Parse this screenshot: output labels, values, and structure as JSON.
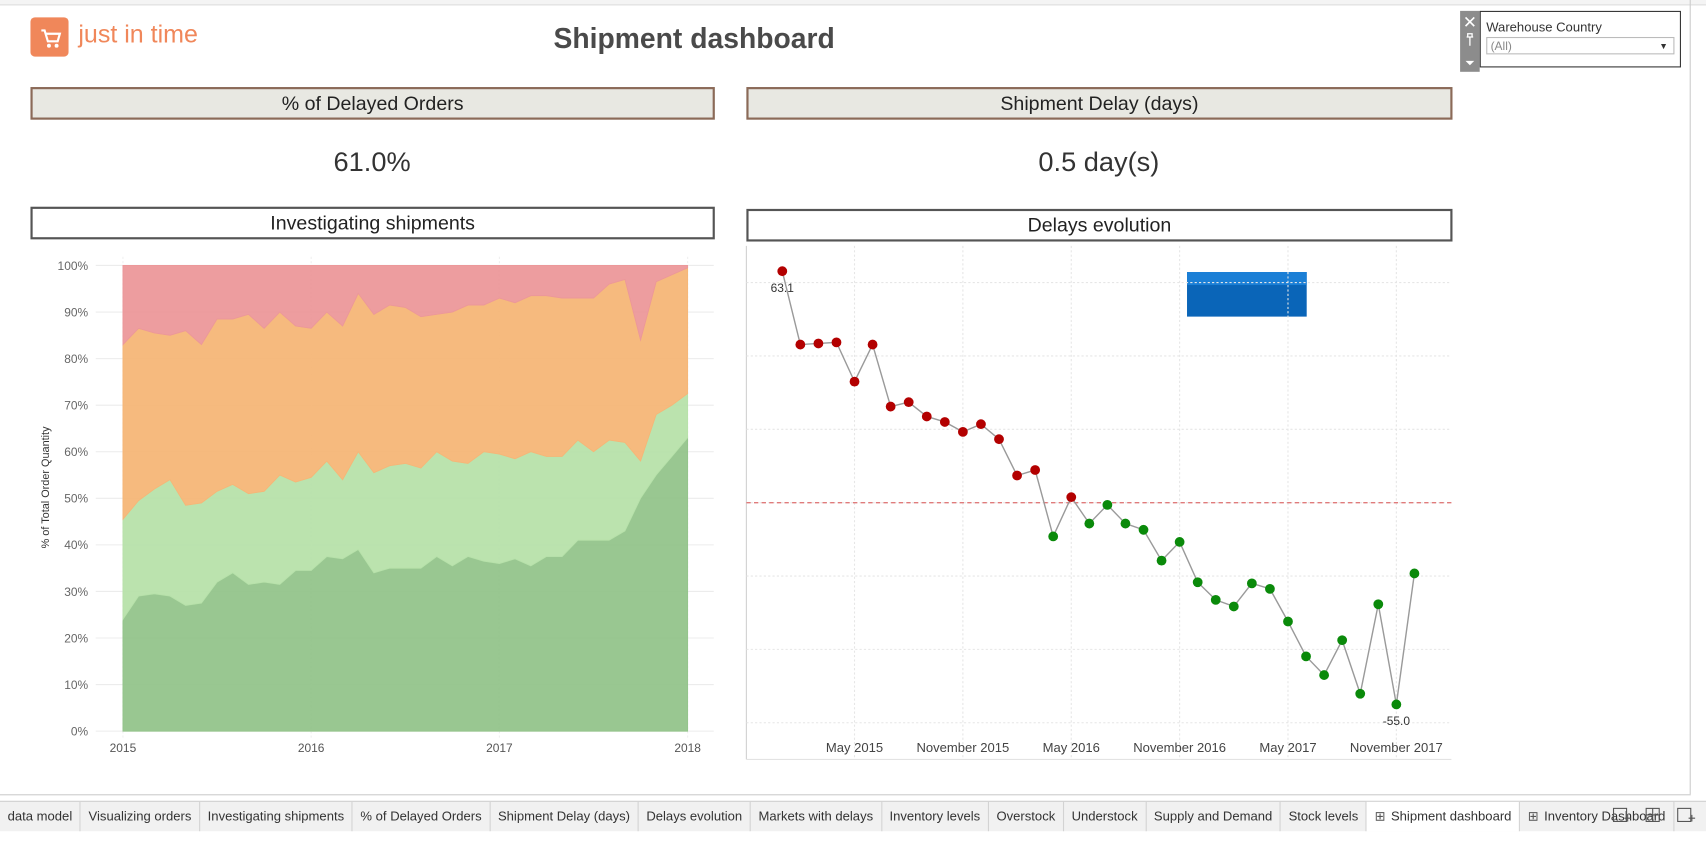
{
  "header": {
    "logo_text": "just in time",
    "title": "Shipment dashboard"
  },
  "kpis": [
    {
      "title": "% of Delayed Orders",
      "value": "61.0%"
    },
    {
      "title": "Shipment Delay (days)",
      "value": "0.5 day(s)"
    }
  ],
  "filter": {
    "label": "Warehouse Country",
    "value": "(All)"
  },
  "tabs": [
    {
      "label": "data model"
    },
    {
      "label": "Visualizing orders"
    },
    {
      "label": "Investigating shipments"
    },
    {
      "label": "% of Delayed Orders"
    },
    {
      "label": "Shipment Delay (days)"
    },
    {
      "label": "Delays evolution"
    },
    {
      "label": "Markets with delays"
    },
    {
      "label": "Inventory levels"
    },
    {
      "label": "Overstock"
    },
    {
      "label": "Understock"
    },
    {
      "label": "Supply and Demand"
    },
    {
      "label": "Stock levels"
    },
    {
      "label": "Shipment dashboard",
      "dashboard": true,
      "active": true
    },
    {
      "label": "Inventory Dashboard",
      "dashboard": true
    }
  ],
  "chart_data": [
    {
      "type": "area",
      "stacked": true,
      "title": "Investigating shipments",
      "ylabel": "% of Total Order Quantity",
      "x": [
        2015,
        2015.083,
        2015.167,
        2015.25,
        2015.333,
        2015.417,
        2015.5,
        2015.583,
        2015.667,
        2015.75,
        2015.833,
        2015.917,
        2016,
        2016.083,
        2016.167,
        2016.25,
        2016.333,
        2016.417,
        2016.5,
        2016.583,
        2016.667,
        2016.75,
        2016.833,
        2016.917,
        2017,
        2017.083,
        2017.167,
        2017.25,
        2017.333,
        2017.417,
        2017.5,
        2017.583,
        2017.667,
        2017.75,
        2017.833,
        2017.917,
        2018
      ],
      "xlim": [
        2015,
        2018
      ],
      "xticks": [
        2015,
        2016,
        2017,
        2018
      ],
      "ylim": [
        0,
        100
      ],
      "yticks": [
        {
          "value": 0,
          "label": "0%"
        },
        {
          "value": 10,
          "label": "10%"
        },
        {
          "value": 20,
          "label": "20%"
        },
        {
          "value": 30,
          "label": "30%"
        },
        {
          "value": 40,
          "label": "40%"
        },
        {
          "value": 50,
          "label": "50%"
        },
        {
          "value": 60,
          "label": "60%"
        },
        {
          "value": 70,
          "label": "70%"
        },
        {
          "value": 80,
          "label": "80%"
        },
        {
          "value": 90,
          "label": "90%"
        },
        {
          "value": 100,
          "label": "100%"
        }
      ],
      "grid": true,
      "series": [
        {
          "color": "#93c48b",
          "values": [
            24,
            29,
            29.5,
            29,
            27,
            27.5,
            32,
            34,
            31.5,
            32,
            31.5,
            34.5,
            34.5,
            37.5,
            37,
            39,
            34,
            35,
            35,
            35,
            37.5,
            35.5,
            37.5,
            36.5,
            36,
            37,
            35.5,
            37.5,
            37.5,
            41,
            41,
            41,
            43,
            50,
            55,
            59,
            63
          ]
        },
        {
          "color": "#b7e1aa",
          "values": [
            21.5,
            20.5,
            22.5,
            25,
            21.5,
            21.5,
            19.5,
            19,
            19.5,
            19.5,
            23.5,
            19,
            20,
            20.5,
            17,
            21,
            21.5,
            22,
            22.5,
            21.5,
            22.5,
            22.5,
            20,
            23.5,
            23.5,
            21.5,
            24.5,
            21.5,
            21.5,
            21.5,
            19,
            21.5,
            19,
            8,
            13,
            11,
            9.5
          ]
        },
        {
          "color": "#f6b677",
          "values": [
            37.5,
            37,
            33.5,
            31,
            37.5,
            34,
            37,
            35.5,
            38.5,
            35,
            35,
            33.5,
            32,
            32,
            33,
            34,
            34,
            34.5,
            33.5,
            32.5,
            29.5,
            32,
            34,
            31.5,
            33.5,
            33.5,
            33.5,
            34.5,
            34,
            30.5,
            33,
            33.5,
            35,
            26,
            28.5,
            28,
            27
          ]
        },
        {
          "color": "#ec989a",
          "values": [
            17,
            13.5,
            14.5,
            15,
            14,
            17,
            11.5,
            11.5,
            10.5,
            13.5,
            10,
            13,
            13.5,
            10,
            13,
            6,
            10.5,
            8.5,
            9,
            11,
            10.5,
            10,
            8.5,
            8.5,
            7,
            8,
            6.5,
            6.5,
            7,
            7,
            7,
            4,
            3,
            16,
            3.5,
            2,
            0.5
          ]
        }
      ]
    },
    {
      "type": "line",
      "title": "Delays evolution",
      "categories": [
        null,
        null,
        null,
        null,
        "May 2015",
        null,
        null,
        null,
        null,
        null,
        "November 2015",
        null,
        null,
        null,
        null,
        null,
        "May 2016",
        null,
        null,
        null,
        null,
        null,
        "November 2016",
        null,
        null,
        null,
        null,
        null,
        "May 2017",
        null,
        null,
        null,
        null,
        null,
        "November 2017",
        null
      ],
      "values": [
        63.1,
        43.1,
        43.4,
        43.7,
        33.0,
        43.1,
        26.2,
        27.4,
        23.5,
        22.0,
        19.3,
        21.4,
        17.3,
        7.4,
        8.9,
        -9.2,
        1.5,
        -5.7,
        -0.6,
        -5.7,
        -7.4,
        -15.8,
        -10.7,
        -21.7,
        -26.5,
        -28.3,
        -22.0,
        -23.5,
        -32.4,
        -41.9,
        -47.0,
        -37.5,
        -52.1,
        -27.7,
        -55.0,
        -19.3
      ],
      "value_labels": [
        "63.1",
        null,
        null,
        null,
        null,
        null,
        null,
        null,
        null,
        null,
        null,
        null,
        null,
        null,
        null,
        null,
        null,
        null,
        null,
        null,
        null,
        null,
        null,
        null,
        null,
        null,
        null,
        null,
        null,
        null,
        null,
        null,
        null,
        null,
        "-55.0",
        null
      ],
      "ylim": [
        -70,
        70
      ],
      "yticks": [
        -60,
        -40,
        -20,
        0,
        20,
        40,
        60
      ],
      "grid": true,
      "reference_line": 0,
      "line_color": "#9a9a9a",
      "above_color": "#b30000",
      "below_color": "#0a8a0a",
      "reference_color": "#e07b7b"
    }
  ]
}
